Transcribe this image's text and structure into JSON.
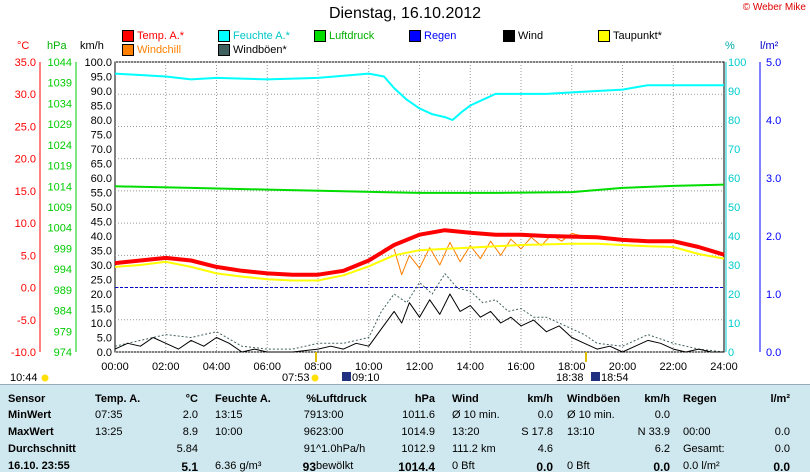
{
  "title": "Dienstag, 16.10.2012",
  "copyright": "© Weber Mike",
  "legend": [
    {
      "label": "Temp. A.*",
      "color": "#ff0000"
    },
    {
      "label": "Feuchte A.*",
      "color": "#00ffff"
    },
    {
      "label": "Luftdruck",
      "color": "#00dd00"
    },
    {
      "label": "Regen",
      "color": "#0000ff"
    },
    {
      "label": "Wind",
      "color": "#000000"
    },
    {
      "label": "Taupunkt*",
      "color": "#ffff00"
    },
    {
      "label": "Windchill",
      "color": "#ff8000"
    },
    {
      "label": "Windböen*",
      "color": "#406060"
    }
  ],
  "axis_units": {
    "temp": "°C",
    "pressure": "hPa",
    "wind": "km/h",
    "humidity": "%",
    "rain": "l/m²"
  },
  "sun_times": {
    "left": "10:44",
    "sunrise": "07:53",
    "sunrise2": "09:10",
    "sunset1": "18:38",
    "sunset2": "18:54"
  },
  "chart_data": {
    "type": "line",
    "x_ticks": [
      "00:00",
      "02:00",
      "04:00",
      "06:00",
      "08:00",
      "10:00",
      "12:00",
      "14:00",
      "16:00",
      "18:00",
      "20:00",
      "22:00",
      "24:00"
    ],
    "axes": {
      "temp": {
        "ticks": [
          "35.0",
          "30.0",
          "25.0",
          "20.0",
          "15.0",
          "10.0",
          "5.0",
          "0.0",
          "-5.0",
          "-10.0"
        ],
        "range": [
          -10,
          35
        ],
        "color": "#ff0000"
      },
      "pressure": {
        "ticks": [
          "1044",
          "1039",
          "1034",
          "1029",
          "1024",
          "1019",
          "1014",
          "1009",
          "1004",
          "999",
          "994",
          "989",
          "984",
          "979",
          "974"
        ],
        "range": [
          974,
          1044
        ],
        "color": "#00cc00"
      },
      "wind": {
        "ticks": [
          "100.0",
          "95.0",
          "90.0",
          "85.0",
          "80.0",
          "75.0",
          "70.0",
          "65.0",
          "60.0",
          "55.0",
          "50.0",
          "45.0",
          "40.0",
          "35.0",
          "30.0",
          "25.0",
          "20.0",
          "15.0",
          "10.0",
          "5.0",
          "0.0"
        ],
        "range": [
          0,
          100
        ],
        "color": "#000000"
      },
      "humidity": {
        "ticks": [
          "100",
          "90",
          "80",
          "70",
          "60",
          "50",
          "40",
          "30",
          "20",
          "10",
          "0"
        ],
        "range": [
          0,
          100
        ],
        "color": "#00cccc"
      },
      "rain": {
        "ticks": [
          "5.0",
          "4.0",
          "3.0",
          "2.0",
          "1.0",
          "0.0"
        ],
        "range": [
          0,
          5
        ],
        "color": "#0000ff"
      }
    },
    "series": [
      {
        "name": "Temp. A.*",
        "axis": "temp",
        "color": "#ff0000",
        "width": 4,
        "points": [
          [
            0,
            3.8
          ],
          [
            1,
            4.2
          ],
          [
            2,
            4.6
          ],
          [
            3,
            4.2
          ],
          [
            4,
            3.2
          ],
          [
            5,
            2.6
          ],
          [
            6,
            2.2
          ],
          [
            7,
            2.0
          ],
          [
            8,
            2.0
          ],
          [
            9,
            2.6
          ],
          [
            10,
            4.2
          ],
          [
            11,
            6.6
          ],
          [
            12,
            8.2
          ],
          [
            13,
            8.9
          ],
          [
            14,
            8.5
          ],
          [
            15,
            8.2
          ],
          [
            16,
            8.2
          ],
          [
            17,
            8.0
          ],
          [
            18,
            7.9
          ],
          [
            19,
            7.8
          ],
          [
            20,
            7.4
          ],
          [
            21,
            7.2
          ],
          [
            22,
            7.2
          ],
          [
            23,
            6.3
          ],
          [
            24,
            5.1
          ]
        ]
      },
      {
        "name": "Taupunkt*",
        "axis": "temp",
        "color": "#ffff00",
        "width": 2,
        "points": [
          [
            0,
            3.2
          ],
          [
            1,
            3.5
          ],
          [
            2,
            4.0
          ],
          [
            3,
            3.2
          ],
          [
            4,
            2.2
          ],
          [
            5,
            1.7
          ],
          [
            6,
            1.3
          ],
          [
            7,
            1.1
          ],
          [
            8,
            1.1
          ],
          [
            9,
            1.9
          ],
          [
            10,
            3.3
          ],
          [
            11,
            5.0
          ],
          [
            12,
            5.8
          ],
          [
            13,
            6.0
          ],
          [
            14,
            6.2
          ],
          [
            15,
            6.4
          ],
          [
            16,
            6.6
          ],
          [
            17,
            6.7
          ],
          [
            18,
            6.8
          ],
          [
            19,
            6.8
          ],
          [
            20,
            6.6
          ],
          [
            21,
            6.4
          ],
          [
            22,
            6.3
          ],
          [
            23,
            5.2
          ],
          [
            24,
            4.5
          ]
        ]
      },
      {
        "name": "Windchill",
        "axis": "temp",
        "color": "#ff8000",
        "width": 1,
        "points": [
          [
            11,
            6.0
          ],
          [
            11.3,
            2.0
          ],
          [
            11.6,
            5.0
          ],
          [
            12,
            3.0
          ],
          [
            12.4,
            6.2
          ],
          [
            12.8,
            3.5
          ],
          [
            13.2,
            7.0
          ],
          [
            13.6,
            4.0
          ],
          [
            14,
            6.5
          ],
          [
            14.4,
            4.5
          ],
          [
            14.8,
            7.2
          ],
          [
            15.2,
            5.0
          ],
          [
            15.6,
            7.5
          ],
          [
            16,
            6.0
          ],
          [
            16.4,
            7.8
          ],
          [
            16.8,
            6.5
          ],
          [
            17.2,
            8.2
          ],
          [
            17.6,
            7.2
          ],
          [
            18,
            8.4
          ],
          [
            18.5,
            7.9
          ]
        ]
      },
      {
        "name": "Feuchte A.*",
        "axis": "humidity",
        "color": "#00ffff",
        "width": 2,
        "points": [
          [
            0,
            96
          ],
          [
            2,
            95
          ],
          [
            3,
            94
          ],
          [
            4,
            94.5
          ],
          [
            6,
            94
          ],
          [
            8,
            94.5
          ],
          [
            10,
            96
          ],
          [
            10.6,
            95
          ],
          [
            11,
            91
          ],
          [
            11.5,
            87
          ],
          [
            12,
            84
          ],
          [
            12.5,
            82
          ],
          [
            13,
            81
          ],
          [
            13.3,
            80
          ],
          [
            13.7,
            83
          ],
          [
            14,
            85
          ],
          [
            14.5,
            87
          ],
          [
            15,
            89
          ],
          [
            16,
            89
          ],
          [
            17,
            89
          ],
          [
            18,
            89.5
          ],
          [
            19,
            90
          ],
          [
            20,
            90.5
          ],
          [
            21,
            92
          ],
          [
            22,
            92
          ],
          [
            23,
            92
          ],
          [
            24,
            92
          ]
        ]
      },
      {
        "name": "Luftdruck",
        "axis": "pressure",
        "color": "#00dd00",
        "width": 2,
        "points": [
          [
            0,
            1014
          ],
          [
            3,
            1013.6
          ],
          [
            6,
            1013.2
          ],
          [
            9,
            1012.8
          ],
          [
            12,
            1012.4
          ],
          [
            15,
            1012.4
          ],
          [
            18,
            1012.6
          ],
          [
            20,
            1013.6
          ],
          [
            22,
            1014.1
          ],
          [
            24,
            1014.4
          ]
        ]
      },
      {
        "name": "Wind",
        "axis": "wind",
        "color": "#000000",
        "width": 1,
        "points": [
          [
            0,
            1
          ],
          [
            0.5,
            3
          ],
          [
            1,
            2
          ],
          [
            1.5,
            5
          ],
          [
            2,
            3
          ],
          [
            2.5,
            1
          ],
          [
            3,
            4
          ],
          [
            3.5,
            2
          ],
          [
            4,
            5
          ],
          [
            4.5,
            3
          ],
          [
            5,
            0
          ],
          [
            5.5,
            1
          ],
          [
            6,
            0
          ],
          [
            7,
            0
          ],
          [
            8,
            1
          ],
          [
            8.5,
            2
          ],
          [
            9,
            1
          ],
          [
            9.5,
            3
          ],
          [
            10,
            2
          ],
          [
            10.5,
            8
          ],
          [
            11,
            14
          ],
          [
            11.3,
            10
          ],
          [
            11.6,
            17
          ],
          [
            12,
            12
          ],
          [
            12.4,
            18
          ],
          [
            12.8,
            13
          ],
          [
            13.2,
            20
          ],
          [
            13.6,
            14
          ],
          [
            14,
            16
          ],
          [
            14.4,
            12
          ],
          [
            14.8,
            14
          ],
          [
            15.2,
            10
          ],
          [
            15.6,
            12
          ],
          [
            16,
            9
          ],
          [
            16.5,
            11
          ],
          [
            17,
            7
          ],
          [
            17.5,
            9
          ],
          [
            18,
            5
          ],
          [
            18.5,
            3
          ],
          [
            19,
            1
          ],
          [
            19.5,
            2
          ],
          [
            20,
            0
          ],
          [
            20.5,
            2
          ],
          [
            21,
            4
          ],
          [
            21.5,
            3
          ],
          [
            22,
            1
          ],
          [
            22.5,
            0
          ],
          [
            23,
            1
          ],
          [
            23.5,
            0
          ],
          [
            24,
            0
          ]
        ]
      },
      {
        "name": "Windböen*",
        "axis": "wind",
        "color": "#406060",
        "width": 1,
        "dash": "2,2",
        "points": [
          [
            0,
            2
          ],
          [
            1,
            4
          ],
          [
            2,
            6
          ],
          [
            3,
            5
          ],
          [
            4,
            7
          ],
          [
            5,
            2
          ],
          [
            6,
            1
          ],
          [
            7,
            1
          ],
          [
            8,
            3
          ],
          [
            9,
            3
          ],
          [
            10,
            5
          ],
          [
            10.5,
            14
          ],
          [
            11,
            20
          ],
          [
            11.5,
            17
          ],
          [
            12,
            24
          ],
          [
            12.5,
            20
          ],
          [
            13,
            27
          ],
          [
            13.5,
            22
          ],
          [
            14,
            21
          ],
          [
            14.5,
            17
          ],
          [
            15,
            18
          ],
          [
            15.5,
            14
          ],
          [
            16,
            15
          ],
          [
            16.5,
            12
          ],
          [
            17,
            12
          ],
          [
            17.5,
            10
          ],
          [
            18,
            8
          ],
          [
            18.5,
            6
          ],
          [
            19,
            3
          ],
          [
            20,
            2
          ],
          [
            21,
            6
          ],
          [
            22,
            3
          ],
          [
            23,
            1
          ],
          [
            24,
            0
          ]
        ]
      }
    ],
    "zero_line": {
      "axis": "temp",
      "value": 0,
      "color": "#0000cc"
    }
  },
  "table": {
    "headers": [
      "Sensor",
      "Temp. A.",
      "°C",
      "Feuchte A.",
      "%",
      "Luftdruck",
      "hPa",
      "Wind",
      "km/h",
      "Windböen",
      "km/h",
      "Regen",
      "l/m²"
    ],
    "rows": [
      {
        "label": "MinWert",
        "c": [
          "07:35",
          "2.0",
          "13:15",
          "79",
          "13:00",
          "1011.6",
          "Ø 10 min.",
          "0.0",
          "Ø 10 min.",
          "0.0",
          "",
          ""
        ]
      },
      {
        "label": "MaxWert",
        "c": [
          "13:25",
          "8.9",
          "10:00",
          "96",
          "23:00",
          "1014.9",
          "13:20",
          "S 17.8",
          "13:10",
          "N 33.9",
          "00:00",
          "0.0"
        ]
      },
      {
        "label": "Durchschnitt",
        "c": [
          "",
          "5.84",
          "",
          "91",
          "^1.0hPa/h",
          "1012.9",
          "111.2 km",
          "4.6",
          "",
          "6.2",
          "Gesamt:",
          "0.0"
        ]
      },
      {
        "label": "16.10. 23:55",
        "c": [
          "",
          "5.1",
          "6.36 g/m³",
          "93",
          "bewölkt",
          "1014.4",
          "0 Bft",
          "0.0",
          "0 Bft",
          "0.0",
          "0.0 l/m²",
          "0.0"
        ]
      }
    ]
  }
}
